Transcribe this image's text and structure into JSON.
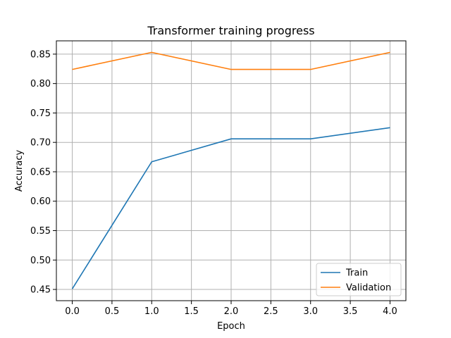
{
  "chart_data": {
    "type": "line",
    "title": "Transformer training progress",
    "xlabel": "Epoch",
    "ylabel": "Accuracy",
    "x": [
      0,
      1,
      2,
      3,
      4
    ],
    "series": [
      {
        "name": "Train",
        "color": "#1f77b4",
        "values": [
          0.451,
          0.667,
          0.706,
          0.706,
          0.725
        ]
      },
      {
        "name": "Validation",
        "color": "#ff7f0e",
        "values": [
          0.824,
          0.853,
          0.824,
          0.824,
          0.853
        ]
      }
    ],
    "xlim": [
      -0.2,
      4.2
    ],
    "ylim": [
      0.4309,
      0.8726
    ],
    "xticks": [
      0.0,
      0.5,
      1.0,
      1.5,
      2.0,
      2.5,
      3.0,
      3.5,
      4.0
    ],
    "xtick_labels": [
      "0.0",
      "0.5",
      "1.0",
      "1.5",
      "2.0",
      "2.5",
      "3.0",
      "3.5",
      "4.0"
    ],
    "yticks": [
      0.45,
      0.5,
      0.55,
      0.6,
      0.65,
      0.7,
      0.75,
      0.8,
      0.85
    ],
    "ytick_labels": [
      "0.45",
      "0.50",
      "0.55",
      "0.60",
      "0.65",
      "0.70",
      "0.75",
      "0.80",
      "0.85"
    ],
    "grid": true,
    "legend_position": "lower-right"
  }
}
